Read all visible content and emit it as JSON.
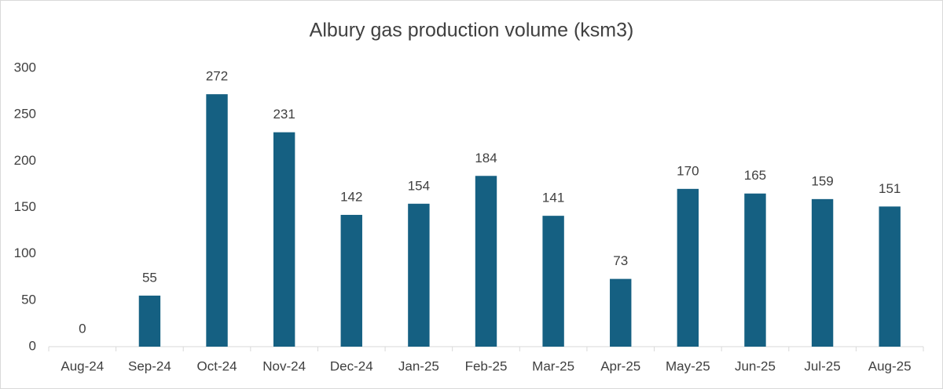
{
  "chart_data": {
    "type": "bar",
    "title": "Albury gas production volume (ksm3)",
    "categories": [
      "Aug-24",
      "Sep-24",
      "Oct-24",
      "Nov-24",
      "Dec-24",
      "Jan-25",
      "Feb-25",
      "Mar-25",
      "Apr-25",
      "May-25",
      "Jun-25",
      "Jul-25",
      "Aug-25"
    ],
    "values": [
      0,
      55,
      272,
      231,
      142,
      154,
      184,
      141,
      73,
      170,
      165,
      159,
      151
    ],
    "color": "#156082",
    "ylim": [
      0,
      300
    ],
    "yticks": [
      0,
      50,
      100,
      150,
      200,
      250,
      300
    ],
    "grid": false
  }
}
